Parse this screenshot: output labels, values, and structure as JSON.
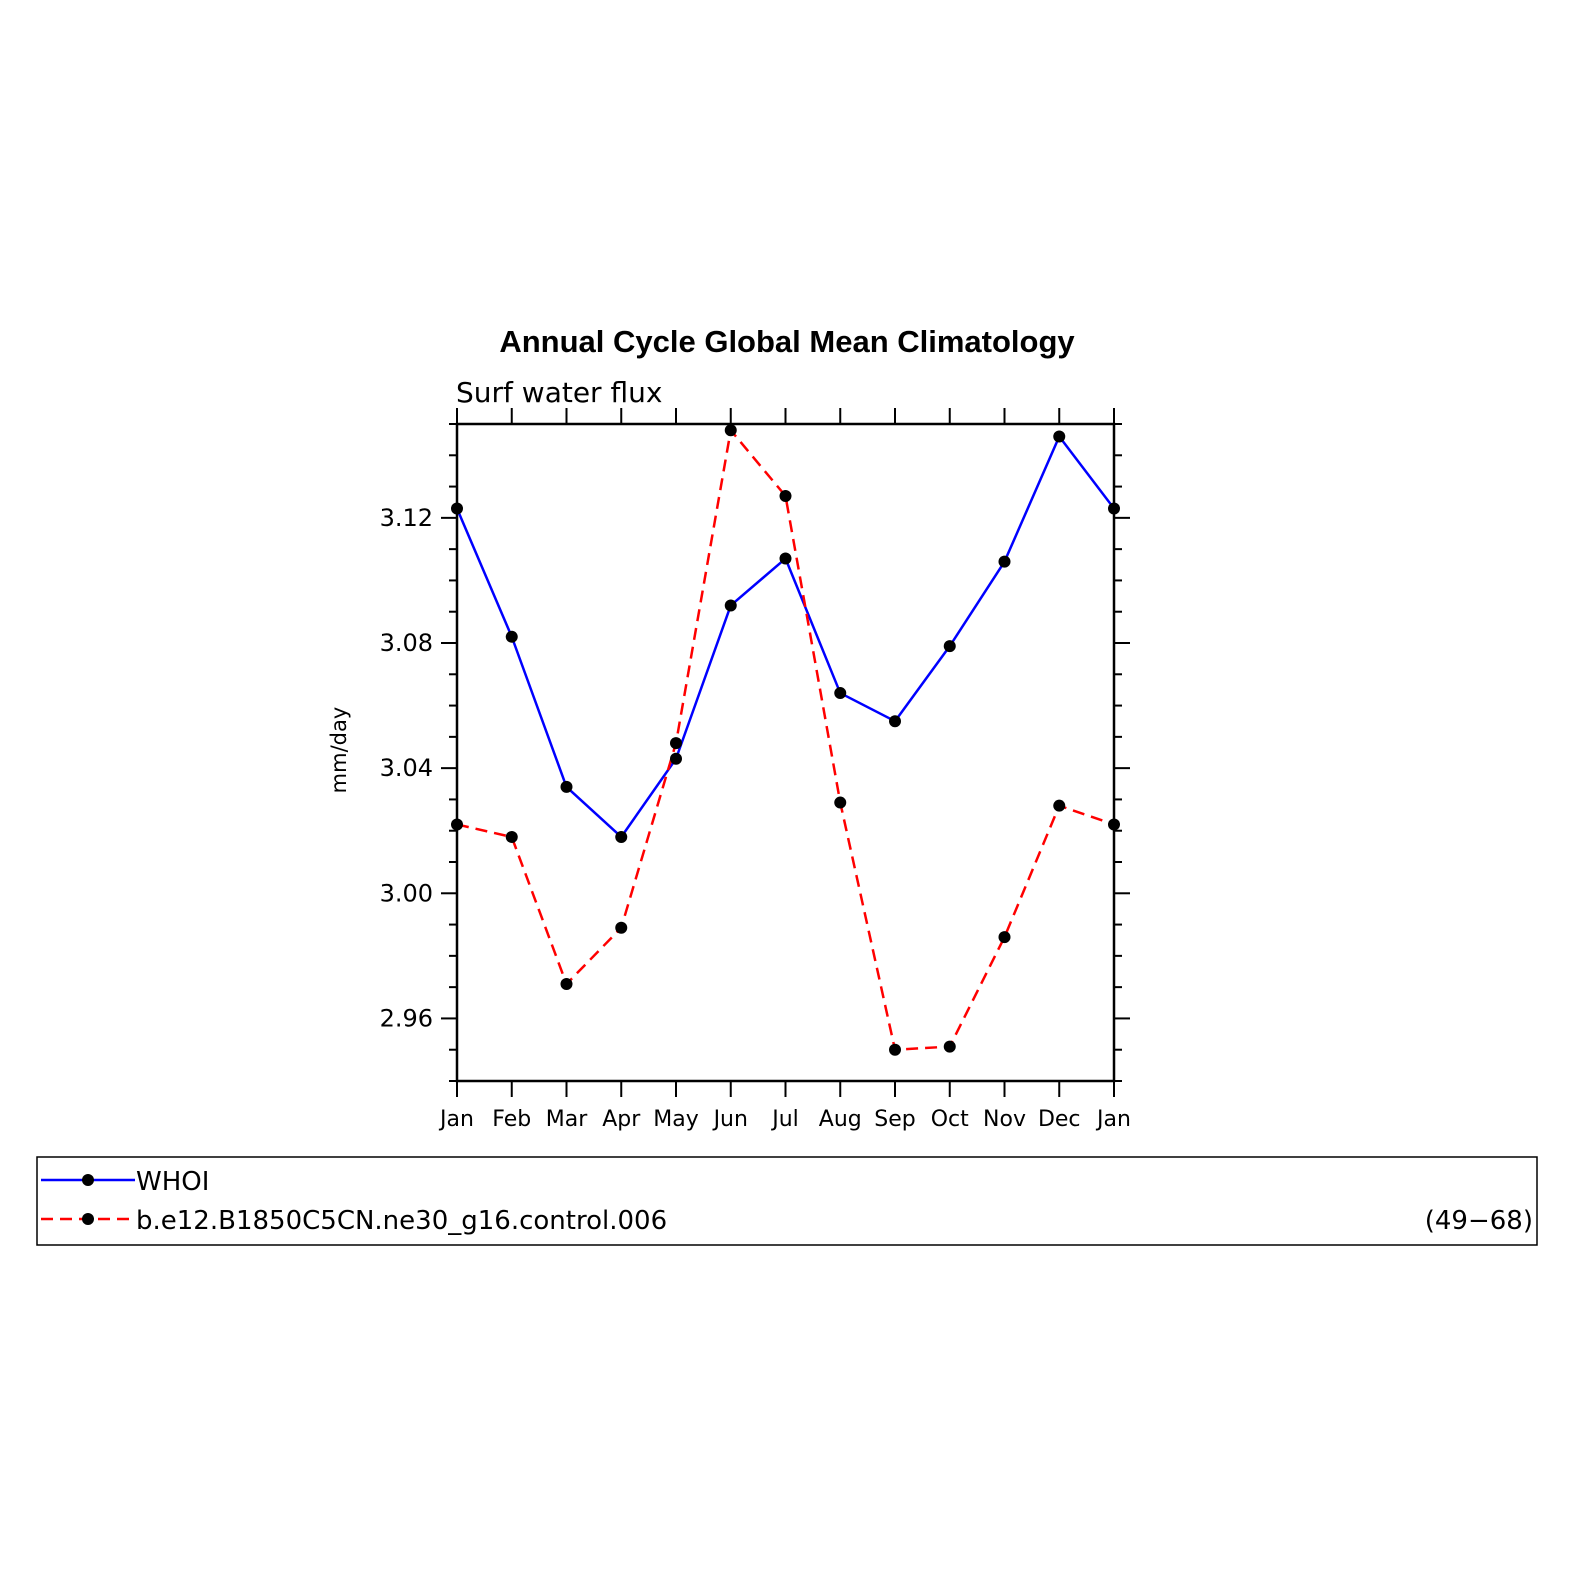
{
  "chart_data": {
    "type": "line",
    "title": "Annual Cycle Global Mean Climatology",
    "subtitle": "Surf water flux",
    "ylabel": "mm/day",
    "xlabel": "",
    "categories": [
      "Jan",
      "Feb",
      "Mar",
      "Apr",
      "May",
      "Jun",
      "Jul",
      "Aug",
      "Sep",
      "Oct",
      "Nov",
      "Dec",
      "Jan"
    ],
    "ylim": [
      2.94,
      3.15
    ],
    "yticks": [
      "3.12",
      "3.08",
      "3.04",
      "3.00",
      "2.96"
    ],
    "grid": false,
    "legend_placement": "bottom",
    "series": [
      {
        "name": "WHOI",
        "color": "#0000ff",
        "dash": "solid",
        "values": [
          3.123,
          3.082,
          3.034,
          3.018,
          3.043,
          3.092,
          3.107,
          3.064,
          3.055,
          3.079,
          3.106,
          3.146,
          3.123
        ]
      },
      {
        "name": "b.e12.B1850C5CN.ne30_g16.control.006",
        "color": "#ff0000",
        "dash": "dashed",
        "values": [
          3.022,
          3.018,
          2.971,
          2.989,
          3.048,
          3.148,
          3.127,
          3.029,
          2.95,
          2.951,
          2.986,
          3.028,
          3.022
        ]
      }
    ],
    "legend_note": "(49−68)"
  }
}
